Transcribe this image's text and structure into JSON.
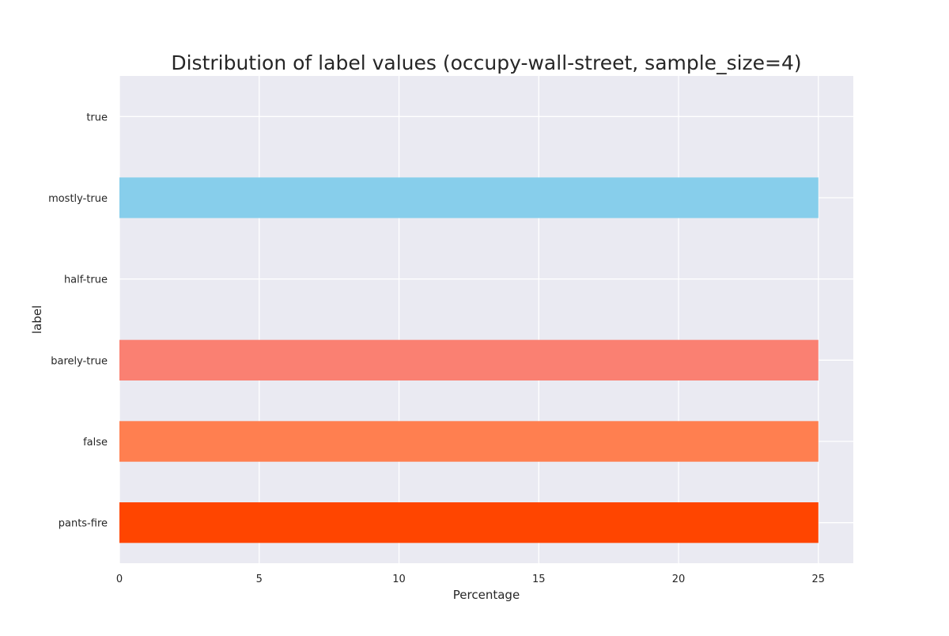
{
  "chart_data": {
    "type": "bar",
    "orientation": "horizontal",
    "title": "Distribution of label values (occupy-wall-street, sample_size=4)",
    "xlabel": "Percentage",
    "ylabel": "label",
    "categories": [
      "true",
      "mostly-true",
      "half-true",
      "barely-true",
      "false",
      "pants-fire"
    ],
    "values": [
      0,
      25,
      0,
      25,
      25,
      25
    ],
    "colors": [
      "#2ca02c",
      "#87ceeb",
      "#ffd700",
      "#fa8072",
      "#ff7f50",
      "#ff4500"
    ],
    "xlim": [
      0,
      26.25
    ],
    "xticks": [
      0,
      5,
      10,
      15,
      20,
      25
    ],
    "grid": true,
    "background": "#eaeaf2",
    "grid_color": "#ffffff"
  }
}
